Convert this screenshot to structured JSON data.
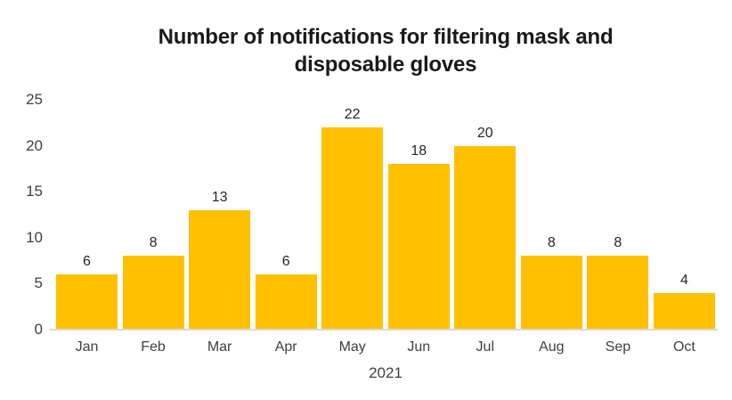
{
  "chart_data": {
    "type": "bar",
    "title": "Number of notifications for filtering mask and disposable gloves",
    "title_lines": [
      "Number of notifications for filtering mask and",
      "disposable gloves"
    ],
    "categories": [
      "Jan",
      "Feb",
      "Mar",
      "Apr",
      "May",
      "Jun",
      "Jul",
      "Aug",
      "Sep",
      "Oct"
    ],
    "values": [
      6,
      8,
      13,
      6,
      22,
      18,
      20,
      8,
      8,
      4
    ],
    "xlabel": "2021",
    "ylabel": "",
    "ylim": [
      0,
      25
    ],
    "yticks": [
      0,
      5,
      10,
      15,
      20,
      25
    ],
    "grid": false,
    "legend": false,
    "colors": {
      "bar": "#FFC000",
      "data_label": "#262626",
      "tick_label": "#404040",
      "title": "#1a1a1a",
      "axis_line": "#DED8D8",
      "background": "#FFFFFF"
    }
  }
}
